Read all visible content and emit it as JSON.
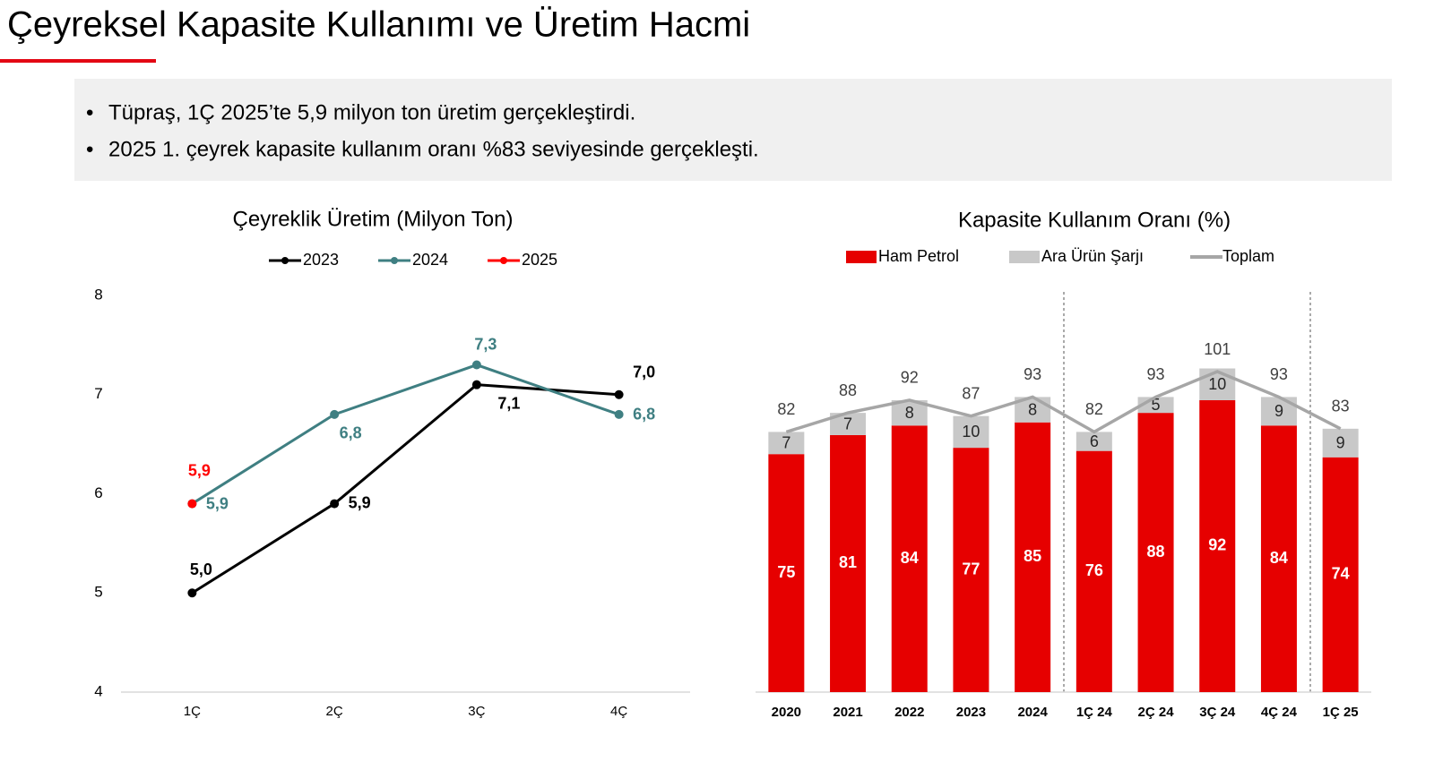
{
  "header": {
    "title": "Çeyreksel Kapasite Kullanımı ve Üretim Hacmi"
  },
  "bullets": [
    "Tüpraş, 1Ç 2025’te 5,9 milyon ton üretim gerçekleştirdi.",
    "2025 1. çeyrek kapasite kullanım oranı %83 seviyesinde gerçekleşti."
  ],
  "chart_data": [
    {
      "type": "line",
      "title": "Çeyreklik Üretim (Milyon Ton)",
      "categories": [
        "1Ç",
        "2Ç",
        "3Ç",
        "4Ç"
      ],
      "series": [
        {
          "name": "2023",
          "color": "#000000",
          "values": [
            5.0,
            5.9,
            7.1,
            7.0
          ],
          "value_labels": [
            "5,0",
            "5,9",
            "7,1",
            "7,0"
          ]
        },
        {
          "name": "2024",
          "color": "#3f7f82",
          "values": [
            5.9,
            6.8,
            7.3,
            6.8
          ],
          "value_labels": [
            "5,9",
            "6,8",
            "7,3",
            "6,8"
          ]
        },
        {
          "name": "2025",
          "color": "#ff0000",
          "values": [
            5.9,
            null,
            null,
            null
          ],
          "value_labels": [
            "5,9",
            null,
            null,
            null
          ]
        }
      ],
      "ylim": [
        4,
        8
      ],
      "yticks": [
        4,
        5,
        6,
        7,
        8
      ]
    },
    {
      "type": "stacked-bar",
      "title": "Kapasite Kullanım Oranı (%)",
      "categories": [
        "2020",
        "2021",
        "2022",
        "2023",
        "2024",
        "1Ç 24",
        "2Ç 24",
        "3Ç 24",
        "4Ç 24",
        "1Ç 25"
      ],
      "series": [
        {
          "name": "Ham Petrol",
          "color": "#e60000",
          "values": [
            75,
            81,
            84,
            77,
            85,
            76,
            88,
            92,
            84,
            74
          ]
        },
        {
          "name": "Ara Ürün Şarjı",
          "color": "#c8c8c8",
          "values": [
            7,
            7,
            8,
            10,
            8,
            6,
            5,
            10,
            9,
            9
          ]
        },
        {
          "name": "Toplam",
          "type": "line",
          "color": "#a6a6a6",
          "values": [
            82,
            88,
            92,
            87,
            93,
            82,
            93,
            101,
            93,
            83
          ]
        }
      ],
      "ylim": [
        0,
        125
      ]
    }
  ]
}
